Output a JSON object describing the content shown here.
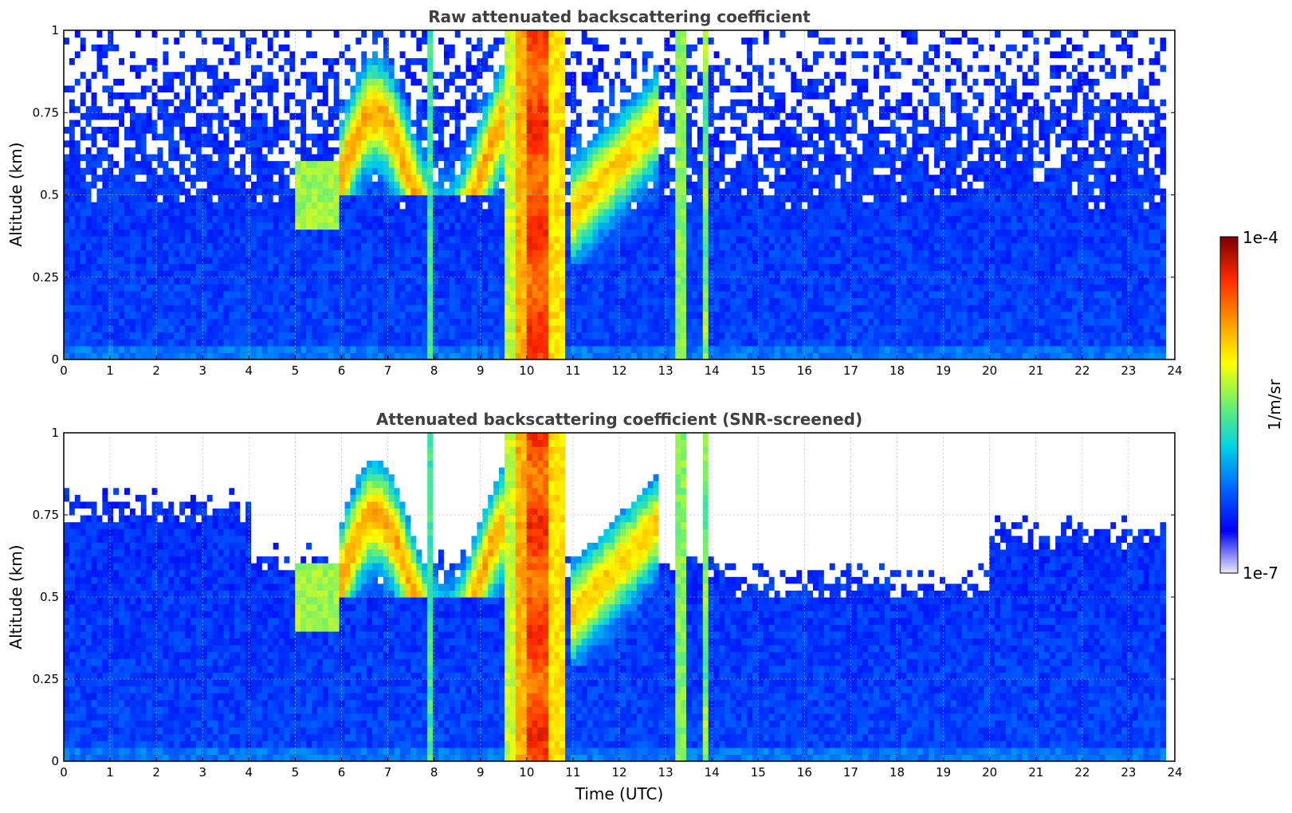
{
  "chart_data": [
    {
      "type": "heatmap",
      "title": "Raw attenuated backscattering coefficient",
      "ylabel": "Altitude (km)",
      "xlabel": "",
      "xlim": [
        0,
        24
      ],
      "ylim": [
        0,
        1
      ],
      "xticks": [
        "0",
        "1",
        "2",
        "3",
        "4",
        "5",
        "6",
        "7",
        "8",
        "9",
        "10",
        "11",
        "12",
        "13",
        "14",
        "15",
        "16",
        "17",
        "18",
        "19",
        "20",
        "21",
        "22",
        "23",
        "24"
      ],
      "yticks": [
        "0",
        "0.25",
        "0.5",
        "0.75",
        "1"
      ],
      "grid": true,
      "screened": false,
      "data_coverage_hours": [
        0,
        23.8
      ],
      "features": {
        "thick_cloud_hours": [
          9.55,
          10.85
        ],
        "cloud_columns_hours": [
          7.95,
          9.7,
          13.3,
          13.85
        ],
        "elevated_layer_km": [
          0.3,
          0.75
        ]
      }
    },
    {
      "type": "heatmap",
      "title": "Attenuated backscattering coefficient (SNR-screened)",
      "ylabel": "Altitude (km)",
      "xlabel": "Time (UTC)",
      "xlim": [
        0,
        24
      ],
      "ylim": [
        0,
        1
      ],
      "xticks": [
        "0",
        "1",
        "2",
        "3",
        "4",
        "5",
        "6",
        "7",
        "8",
        "9",
        "10",
        "11",
        "12",
        "13",
        "14",
        "15",
        "16",
        "17",
        "18",
        "19",
        "20",
        "21",
        "22",
        "23",
        "24"
      ],
      "yticks": [
        "0",
        "0.25",
        "0.5",
        "0.75",
        "1"
      ],
      "grid": true,
      "screened": true,
      "data_coverage_hours": [
        0,
        23.8
      ],
      "features": {
        "thick_cloud_hours": [
          9.55,
          10.85
        ],
        "cloud_columns_hours": [
          7.95,
          9.7,
          13.3,
          13.85
        ],
        "elevated_layer_km": [
          0.3,
          0.75
        ]
      }
    }
  ],
  "colorbar": {
    "label": "1/m/sr",
    "max_label": "1e-4",
    "min_label": "1e-7",
    "scale": "log",
    "range": [
      1e-07,
      0.0001
    ],
    "colormap": [
      "#ebebfa",
      "#0000f5",
      "#0064ff",
      "#00d2e6",
      "#6ef06e",
      "#ffff00",
      "#ff9600",
      "#ff2800",
      "#780000"
    ]
  }
}
